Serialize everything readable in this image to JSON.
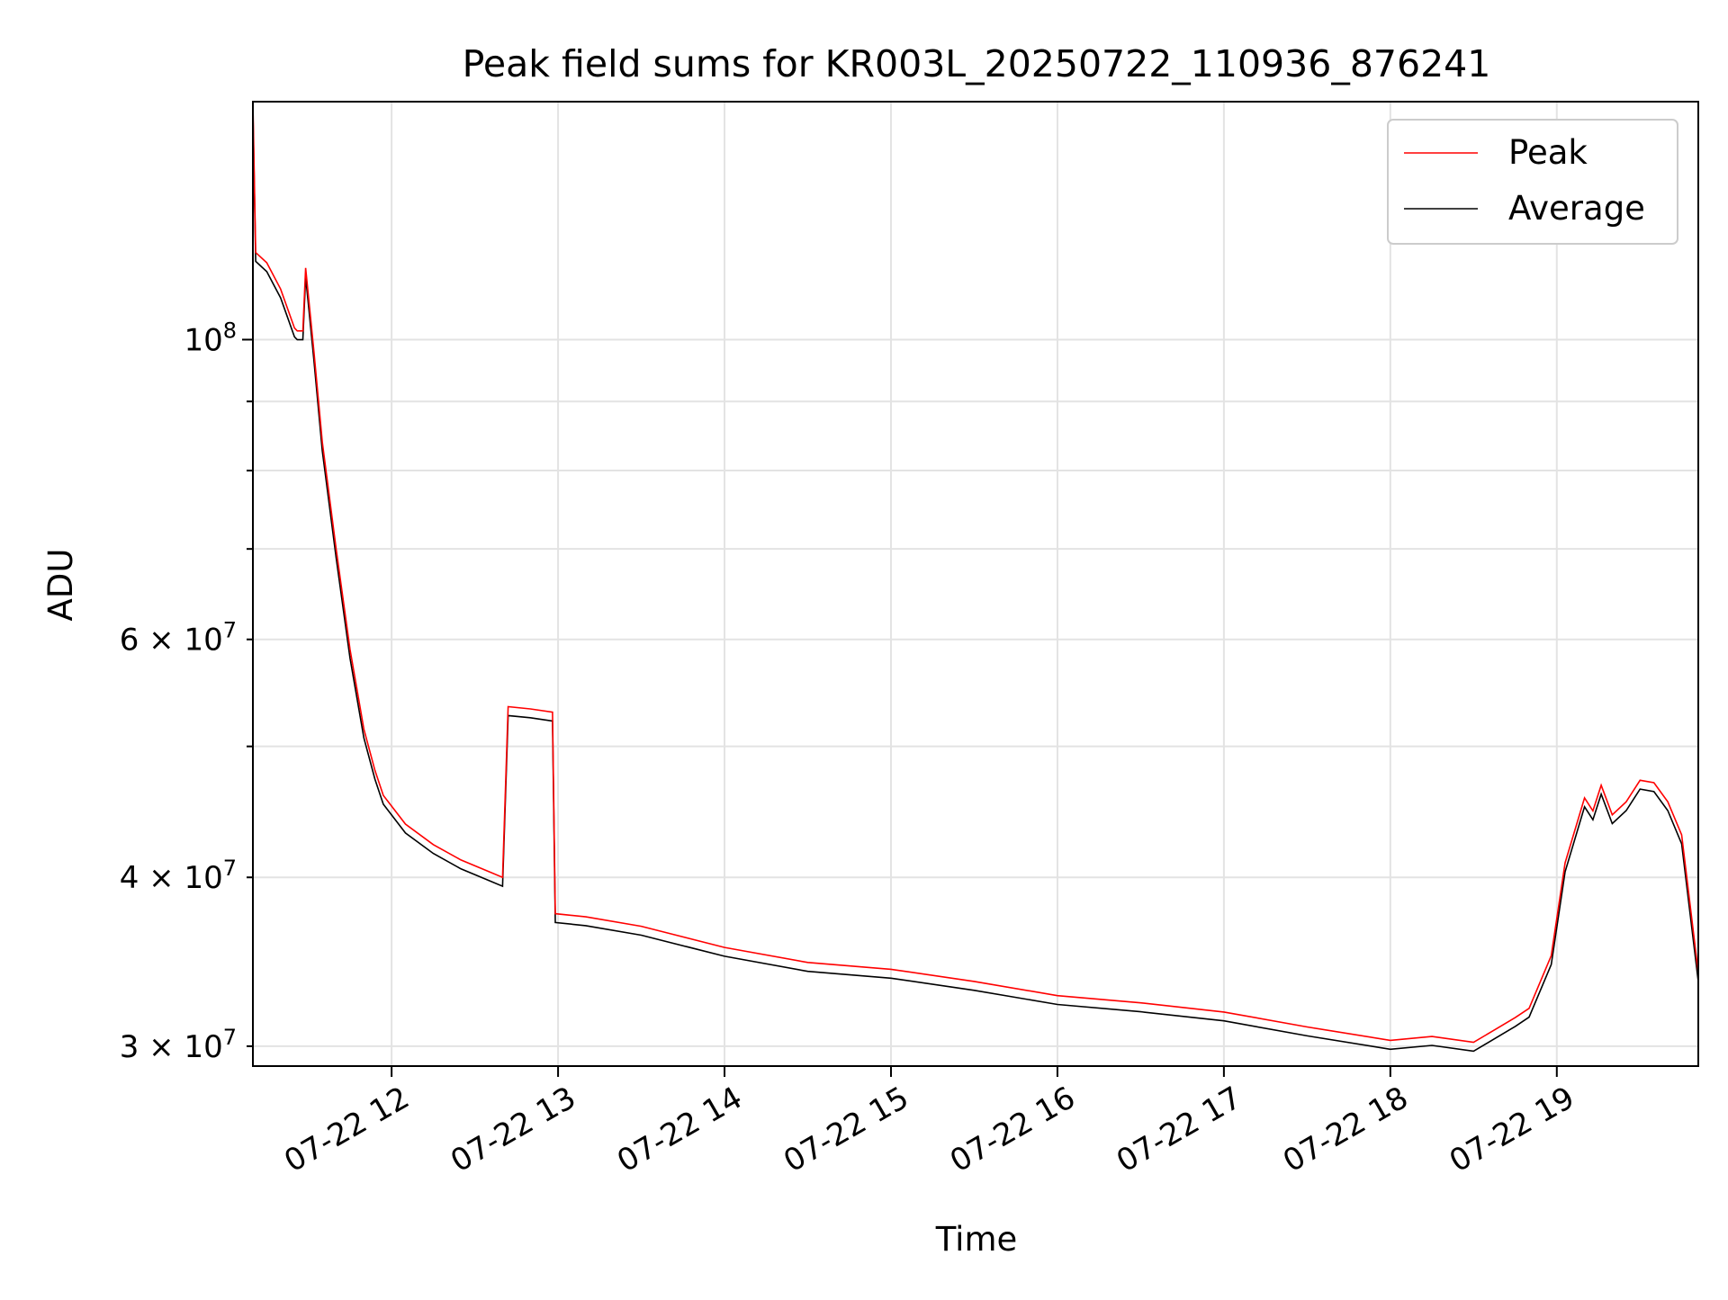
{
  "chart_data": {
    "type": "line",
    "title": "Peak field sums for KR003L_20250722_110936_876241",
    "xlabel": "Time",
    "ylabel": "ADU",
    "x_axis": {
      "kind": "time",
      "range": [
        "2025-07-22 11:10",
        "2025-07-22 19:51"
      ],
      "tick_labels": [
        "07-22 12",
        "07-22 13",
        "07-22 14",
        "07-22 15",
        "07-22 16",
        "07-22 17",
        "07-22 18",
        "07-22 19"
      ],
      "ticks": [
        "2025-07-22 12:00",
        "2025-07-22 13:00",
        "2025-07-22 14:00",
        "2025-07-22 15:00",
        "2025-07-22 16:00",
        "2025-07-22 17:00",
        "2025-07-22 18:00",
        "2025-07-22 19:00"
      ]
    },
    "y_axis": {
      "scale": "log",
      "range": [
        29000000,
        150000000
      ],
      "major_ticks": [
        100000000
      ],
      "major_tick_labels": [
        "10^8"
      ],
      "minor_ticks": [
        30000000,
        40000000,
        50000000,
        60000000,
        70000000,
        80000000,
        90000000
      ],
      "minor_tick_labels": [
        "3 × 10^7",
        "4 × 10^7",
        "",
        "6 × 10^7",
        "",
        "",
        ""
      ]
    },
    "grid": true,
    "legend": {
      "position": "upper right",
      "entries": [
        "Peak",
        "Average"
      ]
    },
    "series": [
      {
        "name": "Peak",
        "color": "#ff0000",
        "points": [
          [
            "2025-07-22 11:10",
            150000000
          ],
          [
            "2025-07-22 11:11",
            116000000
          ],
          [
            "2025-07-22 11:15",
            114000000
          ],
          [
            "2025-07-22 11:20",
            109000000
          ],
          [
            "2025-07-22 11:25",
            102000000
          ],
          [
            "2025-07-22 11:26",
            101500000
          ],
          [
            "2025-07-22 11:28",
            101500000
          ],
          [
            "2025-07-22 11:29",
            113000000
          ],
          [
            "2025-07-22 11:32",
            98000000
          ],
          [
            "2025-07-22 11:35",
            84000000
          ],
          [
            "2025-07-22 11:40",
            70000000
          ],
          [
            "2025-07-22 11:45",
            59000000
          ],
          [
            "2025-07-22 11:50",
            51500000
          ],
          [
            "2025-07-22 11:54",
            48000000
          ],
          [
            "2025-07-22 11:57",
            46000000
          ],
          [
            "2025-07-22 12:05",
            43800000
          ],
          [
            "2025-07-22 12:15",
            42300000
          ],
          [
            "2025-07-22 12:25",
            41200000
          ],
          [
            "2025-07-22 12:35",
            40400000
          ],
          [
            "2025-07-22 12:40",
            40000000
          ],
          [
            "2025-07-22 12:42",
            53500000
          ],
          [
            "2025-07-22 12:50",
            53300000
          ],
          [
            "2025-07-22 12:58",
            53000000
          ],
          [
            "2025-07-22 12:59",
            37600000
          ],
          [
            "2025-07-22 13:10",
            37400000
          ],
          [
            "2025-07-22 13:30",
            36800000
          ],
          [
            "2025-07-22 14:00",
            35500000
          ],
          [
            "2025-07-22 14:30",
            34600000
          ],
          [
            "2025-07-22 15:00",
            34200000
          ],
          [
            "2025-07-22 15:30",
            33500000
          ],
          [
            "2025-07-22 16:00",
            32700000
          ],
          [
            "2025-07-22 16:30",
            32300000
          ],
          [
            "2025-07-22 17:00",
            31800000
          ],
          [
            "2025-07-22 17:30",
            31000000
          ],
          [
            "2025-07-22 18:00",
            30300000
          ],
          [
            "2025-07-22 18:15",
            30500000
          ],
          [
            "2025-07-22 18:30",
            30200000
          ],
          [
            "2025-07-22 18:45",
            31500000
          ],
          [
            "2025-07-22 18:50",
            32000000
          ],
          [
            "2025-07-22 18:58",
            35000000
          ],
          [
            "2025-07-22 19:03",
            41000000
          ],
          [
            "2025-07-22 19:10",
            45800000
          ],
          [
            "2025-07-22 19:13",
            44800000
          ],
          [
            "2025-07-22 19:16",
            46800000
          ],
          [
            "2025-07-22 19:20",
            44500000
          ],
          [
            "2025-07-22 19:25",
            45500000
          ],
          [
            "2025-07-22 19:30",
            47200000
          ],
          [
            "2025-07-22 19:35",
            47000000
          ],
          [
            "2025-07-22 19:40",
            45500000
          ],
          [
            "2025-07-22 19:45",
            43000000
          ],
          [
            "2025-07-22 19:51",
            34000000
          ]
        ]
      },
      {
        "name": "Average",
        "color": "#000000",
        "points": []
      }
    ]
  }
}
